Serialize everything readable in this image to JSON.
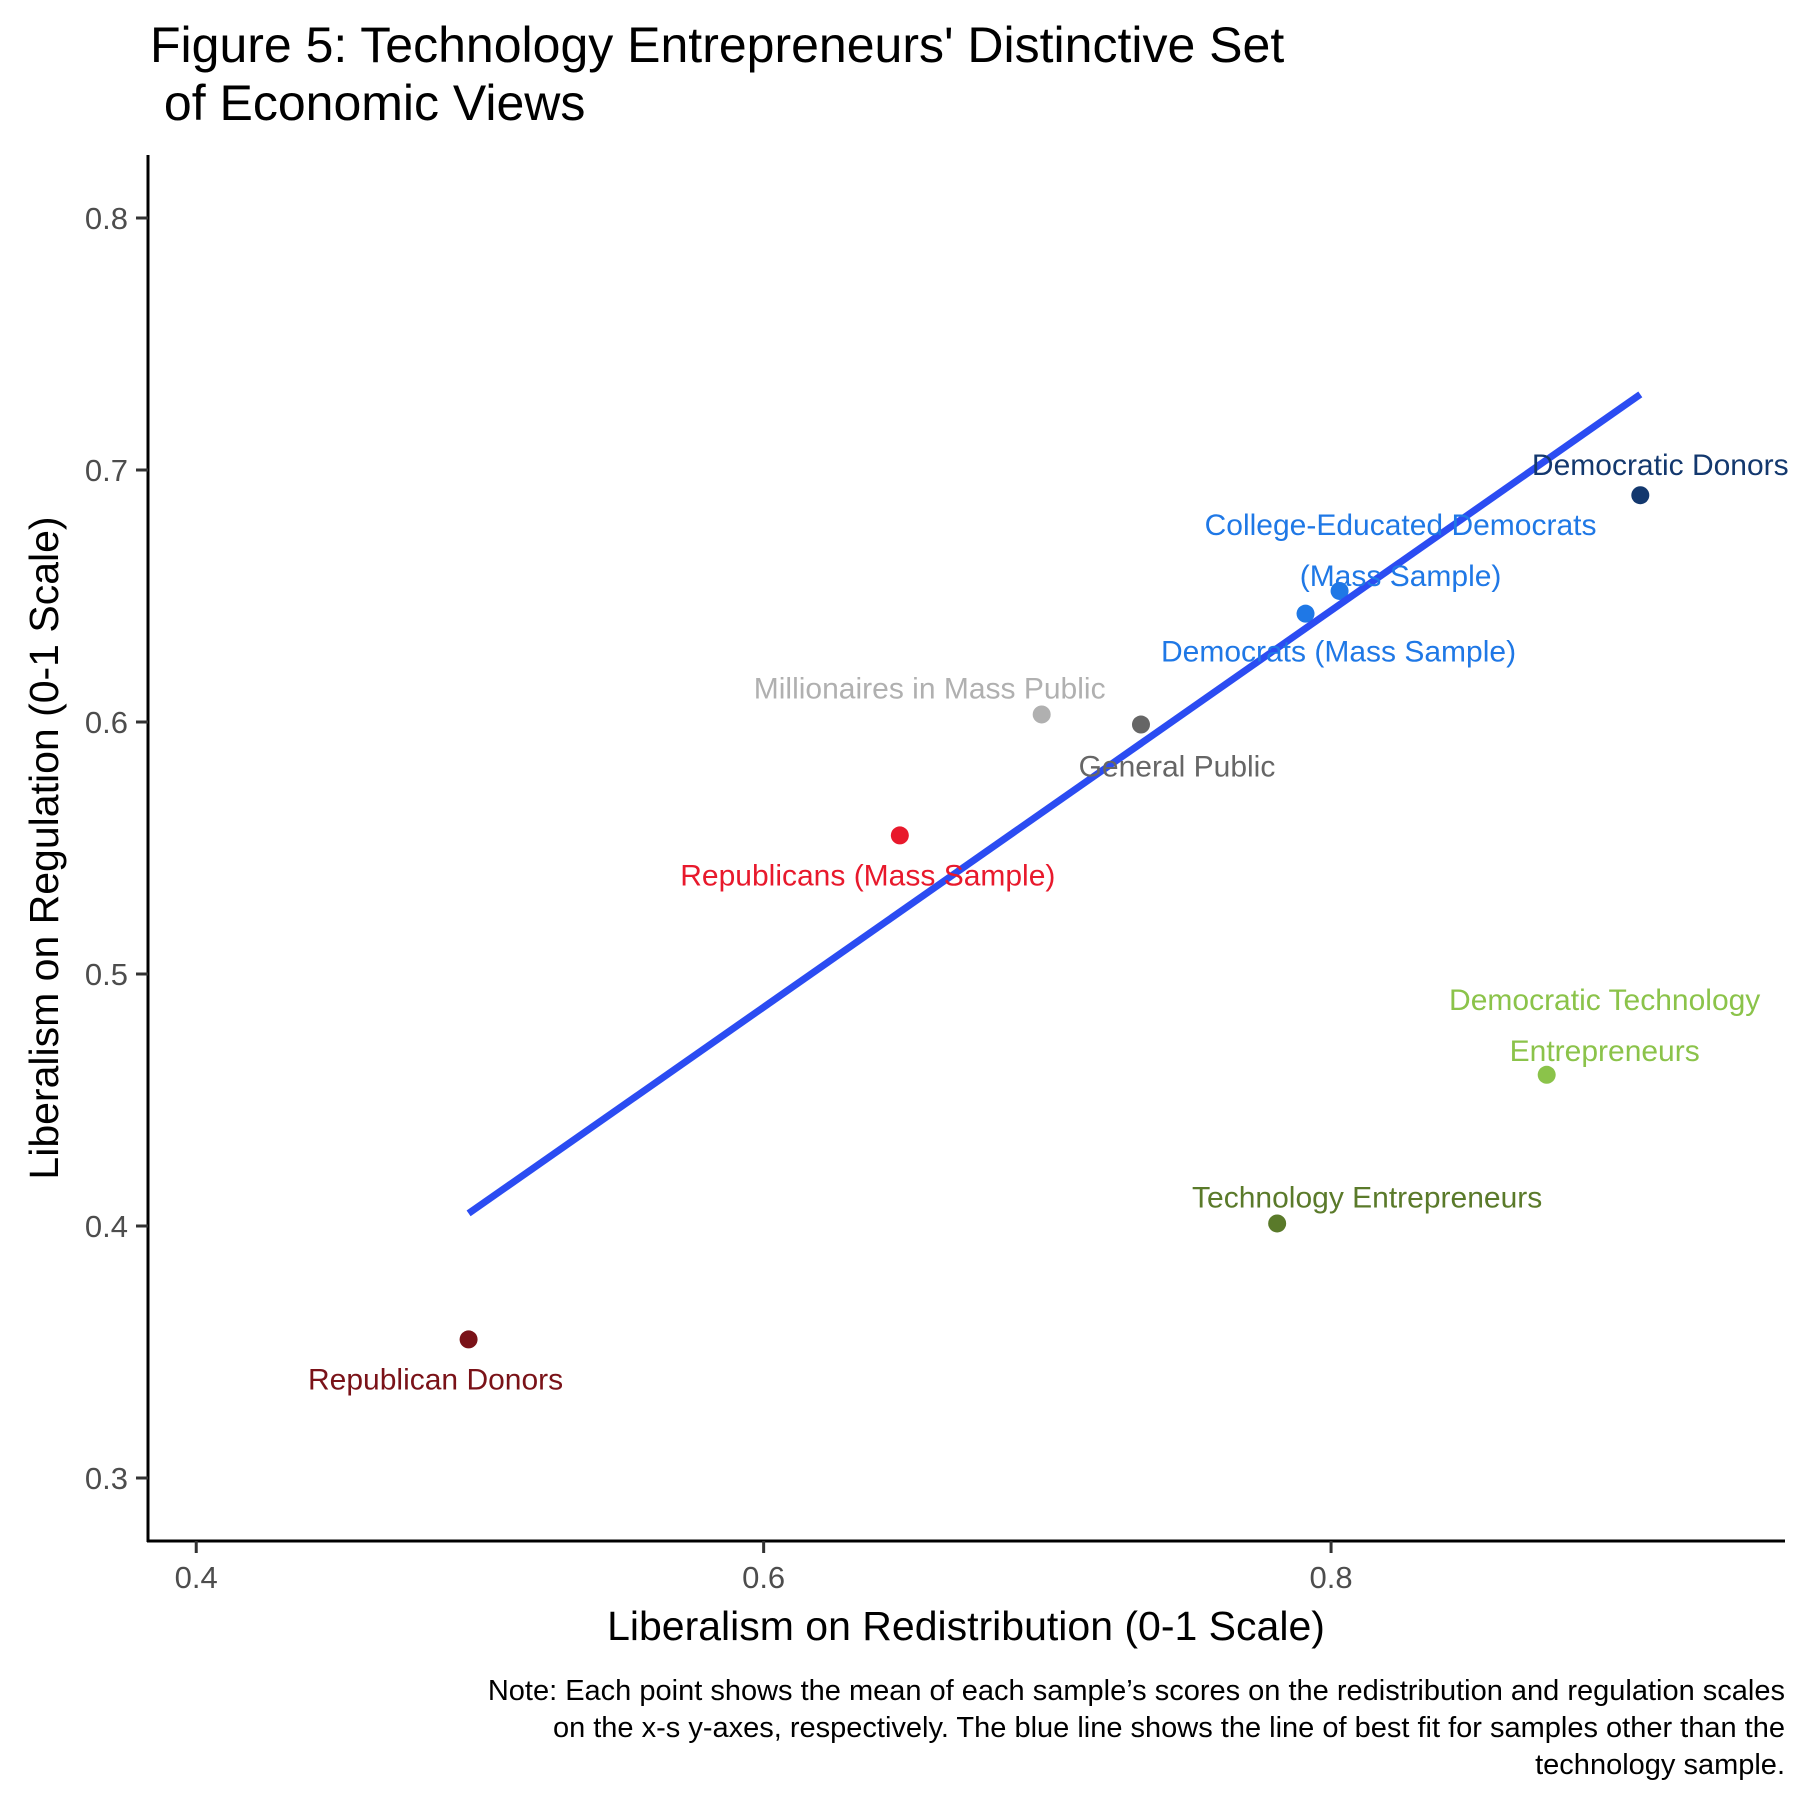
{
  "chart_data": {
    "type": "scatter",
    "title_lines": [
      "Figure 5: Technology Entrepreneurs' Distinctive Set",
      " of Economic Views"
    ],
    "xlabel": "Liberalism on Redistribution (0-1 Scale)",
    "ylabel": "Liberalism on Regulation (0-1 Scale)",
    "xlim": [
      0.383,
      0.96
    ],
    "ylim": [
      0.275,
      0.825
    ],
    "xticks": [
      0.4,
      0.6,
      0.8
    ],
    "xtick_labels": [
      "0.4",
      "0.6",
      "0.8"
    ],
    "yticks": [
      0.3,
      0.4,
      0.5,
      0.6,
      0.7,
      0.8
    ],
    "ytick_labels": [
      "0.3",
      "0.4",
      "0.5",
      "0.6",
      "0.7",
      "0.8"
    ],
    "grid": false,
    "points": [
      {
        "label_lines": [
          "Democratic Donors"
        ],
        "x": 0.909,
        "y": 0.69,
        "color": "#13386e",
        "label_pos": "above"
      },
      {
        "label_lines": [
          "College-Educated Democrats",
          "(Mass Sample)"
        ],
        "x": 0.803,
        "y": 0.652,
        "color": "#1f78e6",
        "label_pos": "above"
      },
      {
        "label_lines": [
          "Democrats (Mass Sample)"
        ],
        "x": 0.791,
        "y": 0.643,
        "color": "#1f78e6",
        "label_pos": "below"
      },
      {
        "label_lines": [
          "Millionaires in Mass Public"
        ],
        "x": 0.698,
        "y": 0.603,
        "color": "#b0b0b0",
        "label_pos": "above-left"
      },
      {
        "label_lines": [
          "General Public"
        ],
        "x": 0.733,
        "y": 0.599,
        "color": "#666666",
        "label_pos": "below"
      },
      {
        "label_lines": [
          "Republicans (Mass Sample)"
        ],
        "x": 0.648,
        "y": 0.555,
        "color": "#e8192c",
        "label_pos": "below"
      },
      {
        "label_lines": [
          "Democratic Technology",
          "Entrepreneurs"
        ],
        "x": 0.876,
        "y": 0.46,
        "color": "#8bc34a",
        "label_pos": "above"
      },
      {
        "label_lines": [
          "Technology Entrepreneurs"
        ],
        "x": 0.781,
        "y": 0.401,
        "color": "#5a7a2a",
        "label_pos": "above"
      },
      {
        "label_lines": [
          "Republican Donors"
        ],
        "x": 0.496,
        "y": 0.355,
        "color": "#7a1218",
        "label_pos": "below"
      }
    ],
    "fit_line": {
      "x": [
        0.496,
        0.909
      ],
      "y": [
        0.405,
        0.73
      ],
      "color": "#2b4cf2"
    },
    "note_lines": [
      "Note: Each point shows the mean of each sample’s scores on the redistribution and regulation scales",
      "on the x-s y-axes, respectively. The blue line shows the line of best fit for samples other than the",
      "technology sample."
    ]
  }
}
